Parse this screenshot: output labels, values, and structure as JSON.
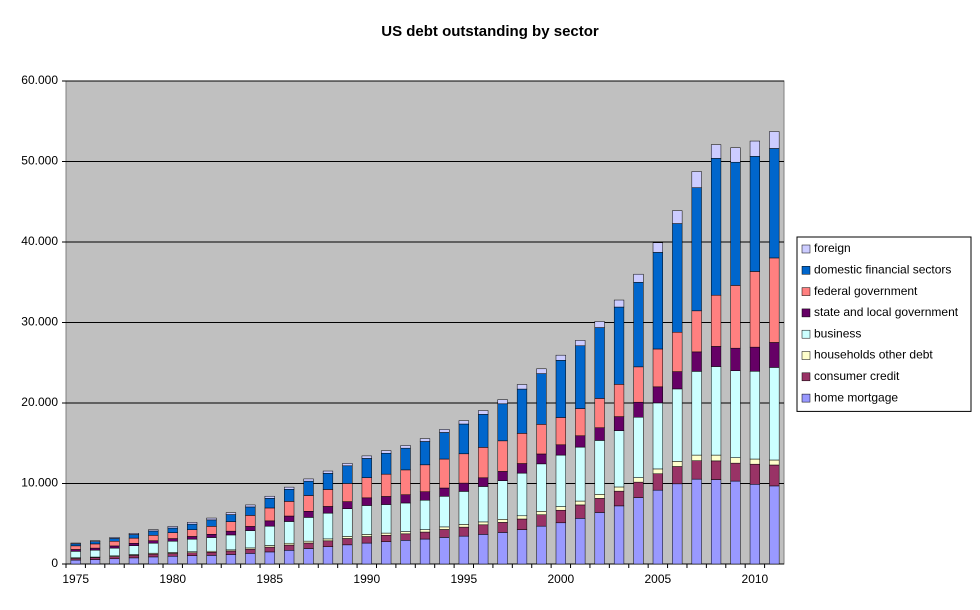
{
  "chart_data": {
    "type": "stacked-bar",
    "title": "US debt outstanding by sector",
    "categories": [
      "1975",
      null,
      null,
      null,
      null,
      "1980",
      null,
      null,
      null,
      null,
      "1985",
      null,
      null,
      null,
      null,
      "1990",
      null,
      null,
      null,
      null,
      "1995",
      null,
      null,
      null,
      null,
      "2000",
      null,
      null,
      null,
      null,
      "2005",
      null,
      null,
      null,
      null,
      "2010",
      null
    ],
    "series": [
      {
        "name": "home mortgage",
        "color": "#9999ff",
        "values": [
          490,
          550,
          650,
          760,
          880,
          960,
          1030,
          1070,
          1180,
          1320,
          1500,
          1700,
          1920,
          2150,
          2380,
          2600,
          2770,
          2940,
          3100,
          3300,
          3460,
          3680,
          3920,
          4270,
          4700,
          5120,
          5670,
          6400,
          7220,
          8250,
          9170,
          9960,
          10540,
          10490,
          10300,
          9900,
          9700
        ]
      },
      {
        "name": "consumer credit",
        "color": "#993366",
        "values": [
          205,
          230,
          270,
          310,
          350,
          350,
          370,
          390,
          440,
          520,
          600,
          660,
          690,
          730,
          790,
          810,
          800,
          810,
          870,
          990,
          1120,
          1190,
          1250,
          1320,
          1420,
          1560,
          1670,
          1750,
          1830,
          1920,
          2040,
          2150,
          2290,
          2320,
          2230,
          2500,
          2600
        ]
      },
      {
        "name": "households other debt",
        "color": "#ffffcc",
        "values": [
          80,
          85,
          95,
          105,
          115,
          120,
          125,
          130,
          140,
          160,
          200,
          220,
          230,
          240,
          250,
          260,
          270,
          280,
          300,
          320,
          340,
          360,
          380,
          400,
          420,
          450,
          480,
          500,
          520,
          560,
          600,
          640,
          700,
          720,
          680,
          640,
          620
        ]
      },
      {
        "name": "business",
        "color": "#ccffff",
        "values": [
          800,
          860,
          960,
          1100,
          1240,
          1400,
          1560,
          1700,
          1850,
          2150,
          2400,
          2700,
          2950,
          3200,
          3450,
          3600,
          3550,
          3550,
          3650,
          3800,
          4100,
          4400,
          4800,
          5300,
          5900,
          6400,
          6700,
          6700,
          7000,
          7500,
          8200,
          9000,
          10400,
          11000,
          10800,
          10900,
          11500
        ]
      },
      {
        "name": "state and local government",
        "color": "#660066",
        "values": [
          230,
          250,
          270,
          300,
          310,
          330,
          340,
          400,
          470,
          520,
          660,
          680,
          760,
          830,
          880,
          950,
          1000,
          1030,
          1060,
          1030,
          1030,
          1080,
          1150,
          1190,
          1230,
          1280,
          1410,
          1580,
          1740,
          1870,
          2000,
          2150,
          2420,
          2500,
          2800,
          3000,
          3100
        ]
      },
      {
        "name": "federal government",
        "color": "#ff8080",
        "values": [
          450,
          520,
          580,
          640,
          670,
          730,
          830,
          990,
          1180,
          1370,
          1600,
          1820,
          1960,
          2110,
          2250,
          2500,
          2770,
          3080,
          3340,
          3600,
          3640,
          3780,
          3800,
          3750,
          3680,
          3390,
          3380,
          3640,
          4010,
          4390,
          4700,
          4890,
          5100,
          6360,
          7800,
          9400,
          10500
        ]
      },
      {
        "name": "domestic financial sectors",
        "color": "#0066cc",
        "values": [
          250,
          290,
          350,
          450,
          540,
          580,
          700,
          800,
          880,
          1050,
          1200,
          1500,
          1780,
          2000,
          2200,
          2400,
          2600,
          2700,
          2900,
          3300,
          3700,
          4100,
          4600,
          5500,
          6300,
          7100,
          7800,
          8800,
          9600,
          10500,
          12000,
          13500,
          15300,
          17000,
          15300,
          14300,
          13600
        ]
      },
      {
        "name": "foreign",
        "color": "#ccccff",
        "values": [
          100,
          110,
          130,
          150,
          170,
          200,
          220,
          230,
          240,
          250,
          260,
          270,
          280,
          290,
          300,
          310,
          320,
          330,
          350,
          380,
          420,
          470,
          520,
          560,
          600,
          640,
          670,
          750,
          870,
          1010,
          1200,
          1600,
          2000,
          1700,
          1800,
          1900,
          2100
        ]
      }
    ],
    "ylim": [
      0,
      60000
    ],
    "yticks": [
      0,
      {
        "value": 10000,
        "label": "10.000"
      },
      {
        "value": 20000,
        "label": "20.000"
      },
      {
        "value": 30000,
        "label": "30.000"
      },
      {
        "value": 40000,
        "label": "40.000"
      },
      {
        "value": 50000,
        "label": "50.000"
      },
      {
        "value": 60000,
        "label": "60.000"
      }
    ],
    "grid": true,
    "plot_background": "#c0c0c0",
    "legend": "right"
  }
}
